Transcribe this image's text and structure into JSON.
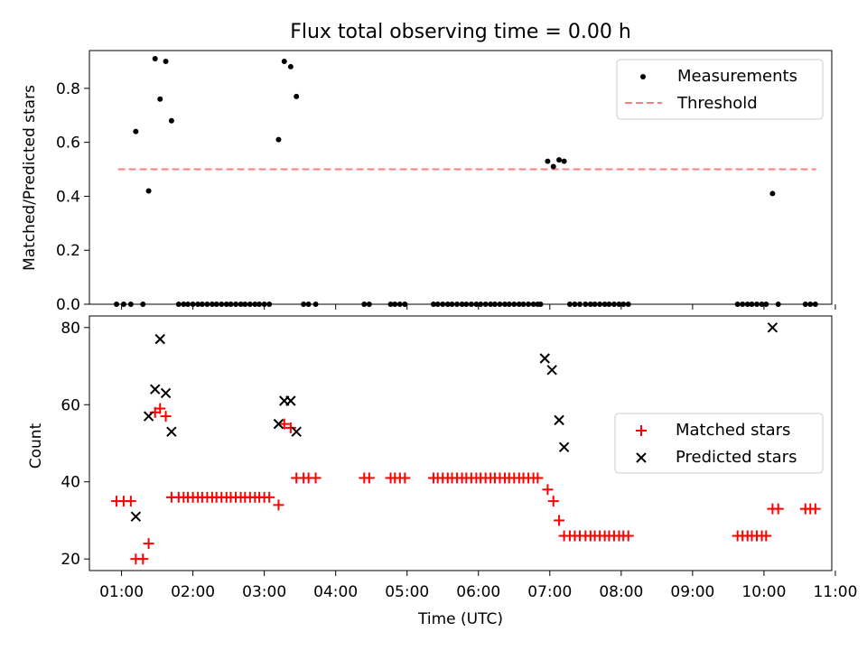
{
  "title": "Flux total observing time = 0.00 h",
  "xlabel": "Time (UTC)",
  "x_ticks": [
    "01:00",
    "02:00",
    "03:00",
    "04:00",
    "05:00",
    "06:00",
    "07:00",
    "08:00",
    "09:00",
    "10:00",
    "11:00"
  ],
  "colors": {
    "measurements": "#000000",
    "threshold": "#ff7f7f",
    "matched": "#ff0000",
    "predicted": "#000000"
  },
  "chart_data": [
    {
      "type": "scatter",
      "ylabel": "Matched/Predicted stars",
      "xlim_hours": [
        0.55,
        10.95
      ],
      "ylim": [
        0,
        0.94
      ],
      "y_ticks": [
        "0.0",
        "0.2",
        "0.4",
        "0.6",
        "0.8"
      ],
      "legend": {
        "placement": "upper right",
        "entries": [
          "Measurements",
          "Threshold"
        ]
      },
      "threshold": {
        "name": "Threshold",
        "value": 0.5,
        "x_range_hours": [
          0.95,
          10.73
        ]
      },
      "series": [
        {
          "name": "Measurements",
          "x_hours": [
            0.93,
            1.03,
            1.13,
            1.2,
            1.3,
            1.38,
            1.47,
            1.54,
            1.62,
            1.7,
            1.8,
            1.87,
            1.93,
            2.0,
            2.07,
            2.13,
            2.2,
            2.27,
            2.33,
            2.4,
            2.47,
            2.53,
            2.6,
            2.67,
            2.73,
            2.8,
            2.87,
            2.93,
            3.0,
            3.07,
            3.2,
            3.28,
            3.37,
            3.45,
            3.55,
            3.62,
            3.72,
            4.4,
            4.47,
            4.77,
            4.83,
            4.9,
            4.97,
            5.37,
            5.43,
            5.5,
            5.57,
            5.63,
            5.7,
            5.77,
            5.83,
            5.9,
            5.97,
            6.03,
            6.1,
            6.17,
            6.23,
            6.3,
            6.37,
            6.43,
            6.5,
            6.57,
            6.63,
            6.7,
            6.77,
            6.83,
            6.87,
            6.97,
            7.05,
            7.13,
            7.2,
            7.28,
            7.35,
            7.42,
            7.5,
            7.57,
            7.63,
            7.7,
            7.77,
            7.83,
            7.9,
            7.97,
            8.03,
            8.1,
            9.63,
            9.7,
            9.77,
            9.83,
            9.9,
            9.97,
            10.03,
            10.12,
            10.2,
            10.58,
            10.65,
            10.72
          ],
          "y": [
            0,
            0,
            0,
            0.64,
            0,
            0.42,
            0.91,
            0.76,
            0.9,
            0.68,
            0,
            0,
            0,
            0,
            0,
            0,
            0,
            0,
            0,
            0,
            0,
            0,
            0,
            0,
            0,
            0,
            0,
            0,
            0,
            0,
            0.61,
            0.9,
            0.88,
            0.77,
            0,
            0,
            0,
            0,
            0,
            0,
            0,
            0,
            0,
            0,
            0,
            0,
            0,
            0,
            0,
            0,
            0,
            0,
            0,
            0,
            0,
            0,
            0,
            0,
            0,
            0,
            0,
            0,
            0,
            0,
            0,
            0,
            0,
            0.53,
            0.51,
            0.535,
            0.53,
            0,
            0,
            0,
            0,
            0,
            0,
            0,
            0,
            0,
            0,
            0,
            0,
            0,
            0,
            0,
            0,
            0,
            0,
            0,
            0,
            0.41,
            0,
            0,
            0,
            0
          ]
        }
      ]
    },
    {
      "type": "scatter",
      "ylabel": "Count",
      "xlim_hours": [
        0.55,
        10.95
      ],
      "ylim": [
        17,
        83
      ],
      "y_ticks": [
        "20",
        "40",
        "60",
        "80"
      ],
      "legend": {
        "placement": "center right",
        "entries": [
          "Matched stars",
          "Predicted stars"
        ]
      },
      "series": [
        {
          "name": "Matched stars",
          "x_hours": [
            0.93,
            1.03,
            1.13,
            1.2,
            1.3,
            1.38,
            1.47,
            1.54,
            1.62,
            1.7,
            1.8,
            1.87,
            1.93,
            2.0,
            2.07,
            2.13,
            2.2,
            2.27,
            2.33,
            2.4,
            2.47,
            2.53,
            2.6,
            2.67,
            2.73,
            2.8,
            2.87,
            2.93,
            3.0,
            3.07,
            3.2,
            3.28,
            3.37,
            3.45,
            3.55,
            3.62,
            3.72,
            4.4,
            4.47,
            4.77,
            4.83,
            4.9,
            4.97,
            5.37,
            5.43,
            5.5,
            5.57,
            5.63,
            5.7,
            5.77,
            5.83,
            5.9,
            5.97,
            6.03,
            6.1,
            6.17,
            6.23,
            6.3,
            6.37,
            6.43,
            6.5,
            6.57,
            6.63,
            6.7,
            6.77,
            6.83,
            6.97,
            7.05,
            7.13,
            7.2,
            7.28,
            7.35,
            7.42,
            7.5,
            7.57,
            7.63,
            7.7,
            7.77,
            7.83,
            7.9,
            7.97,
            8.03,
            8.1,
            9.63,
            9.7,
            9.77,
            9.83,
            9.9,
            9.97,
            10.03,
            10.12,
            10.2,
            10.58,
            10.65,
            10.72
          ],
          "y": [
            35,
            35,
            35,
            20,
            20,
            24,
            58,
            59,
            57,
            36,
            36,
            36,
            36,
            36,
            36,
            36,
            36,
            36,
            36,
            36,
            36,
            36,
            36,
            36,
            36,
            36,
            36,
            36,
            36,
            36,
            34,
            55,
            54,
            41,
            41,
            41,
            41,
            41,
            41,
            41,
            41,
            41,
            41,
            41,
            41,
            41,
            41,
            41,
            41,
            41,
            41,
            41,
            41,
            41,
            41,
            41,
            41,
            41,
            41,
            41,
            41,
            41,
            41,
            41,
            41,
            41,
            38,
            35,
            30,
            26,
            26,
            26,
            26,
            26,
            26,
            26,
            26,
            26,
            26,
            26,
            26,
            26,
            26,
            26,
            26,
            26,
            26,
            26,
            26,
            26,
            33,
            33,
            33,
            33,
            33
          ]
        },
        {
          "name": "Predicted stars",
          "x_hours": [
            1.2,
            1.38,
            1.47,
            1.54,
            1.62,
            1.7,
            3.2,
            3.28,
            3.37,
            3.45,
            6.93,
            7.03,
            7.13,
            7.2,
            10.12
          ],
          "y": [
            31,
            57,
            64,
            77,
            63,
            53,
            55,
            61,
            61,
            53,
            72,
            69,
            56,
            49,
            80
          ]
        }
      ]
    }
  ]
}
